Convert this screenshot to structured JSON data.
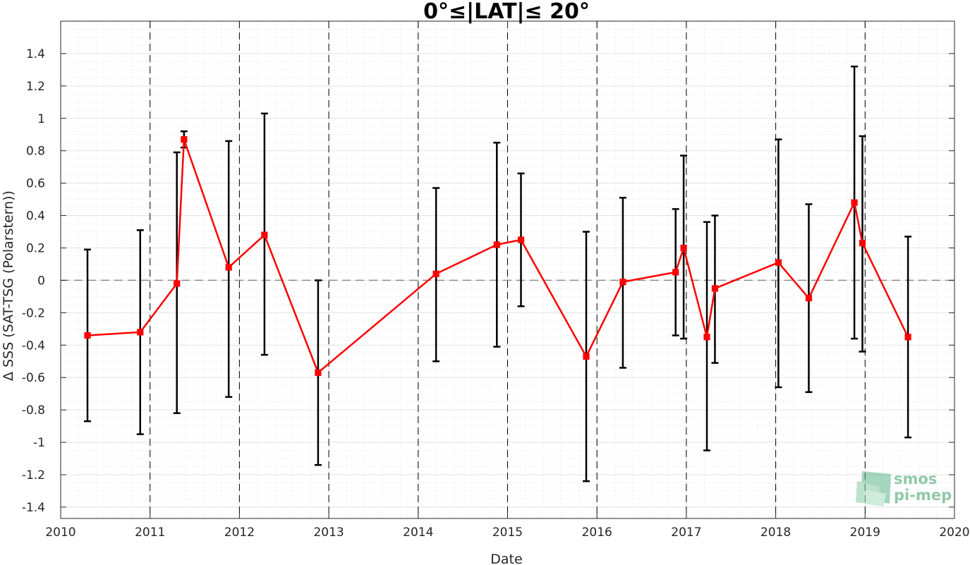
{
  "chart_data": {
    "type": "line",
    "title": "0°≤|LAT|≤ 20°",
    "xlabel": "Date",
    "ylabel": "Δ SSS (SAT-TSG (Polarstern))",
    "xlim": [
      2010,
      2020
    ],
    "ylim": [
      -1.47,
      1.6
    ],
    "x_ticks": [
      "2010",
      "2011",
      "2012",
      "2013",
      "2014",
      "2015",
      "2016",
      "2017",
      "2018",
      "2019",
      "2020"
    ],
    "y_ticks": [
      1.4,
      1.2,
      1,
      0.8,
      0.6,
      0.4,
      0.2,
      0,
      -0.2,
      -0.4,
      -0.6,
      -0.8,
      -1,
      -1.2,
      -1.4
    ],
    "y_tick_labels": [
      "1.4",
      "1.2",
      "1",
      "0.8",
      "0.6",
      "0.4",
      "0.2",
      "0",
      "-0.2",
      "-0.4",
      "-0.6",
      "-0.8",
      "-1",
      "-1.2",
      "-1.4"
    ],
    "grid": true,
    "minor_grid": true,
    "zero_line": 0,
    "vertical_dashed_lines": [
      2011.0,
      2012.0,
      2013.0,
      2014.0,
      2015.0,
      2016.0,
      2017.0,
      2018.0,
      2019.0
    ],
    "series": [
      {
        "color": "#ff0000",
        "marker": "square",
        "errorbar_color": "#000000",
        "points": [
          {
            "x": 2010.3,
            "y": -0.34,
            "lo": -0.87,
            "hi": 0.19
          },
          {
            "x": 2010.89,
            "y": -0.32,
            "lo": -0.95,
            "hi": 0.31
          },
          {
            "x": 2011.3,
            "y": -0.02,
            "lo": -0.82,
            "hi": 0.79
          },
          {
            "x": 2011.38,
            "y": 0.87,
            "lo": 0.82,
            "hi": 0.92
          },
          {
            "x": 2011.88,
            "y": 0.08,
            "lo": -0.72,
            "hi": 0.86
          },
          {
            "x": 2012.28,
            "y": 0.28,
            "lo": -0.46,
            "hi": 1.03
          },
          {
            "x": 2012.88,
            "y": -0.57,
            "lo": -1.14,
            "hi": 0.0
          },
          {
            "x": 2014.2,
            "y": 0.04,
            "lo": -0.5,
            "hi": 0.57
          },
          {
            "x": 2014.88,
            "y": 0.22,
            "lo": -0.41,
            "hi": 0.85
          },
          {
            "x": 2015.15,
            "y": 0.25,
            "lo": -0.16,
            "hi": 0.66
          },
          {
            "x": 2015.88,
            "y": -0.47,
            "lo": -1.24,
            "hi": 0.3
          },
          {
            "x": 2016.29,
            "y": -0.01,
            "lo": -0.54,
            "hi": 0.51
          },
          {
            "x": 2016.88,
            "y": 0.05,
            "lo": -0.34,
            "hi": 0.44
          },
          {
            "x": 2016.97,
            "y": 0.2,
            "lo": -0.36,
            "hi": 0.77
          },
          {
            "x": 2017.23,
            "y": -0.35,
            "lo": -1.05,
            "hi": 0.36
          },
          {
            "x": 2017.32,
            "y": -0.05,
            "lo": -0.51,
            "hi": 0.4
          },
          {
            "x": 2018.03,
            "y": 0.11,
            "lo": -0.66,
            "hi": 0.87
          },
          {
            "x": 2018.37,
            "y": -0.11,
            "lo": -0.69,
            "hi": 0.47
          },
          {
            "x": 2018.88,
            "y": 0.48,
            "lo": -0.36,
            "hi": 1.32
          },
          {
            "x": 2018.97,
            "y": 0.23,
            "lo": -0.44,
            "hi": 0.89
          },
          {
            "x": 2019.48,
            "y": -0.35,
            "lo": -0.97,
            "hi": 0.27
          }
        ]
      }
    ]
  },
  "logo": {
    "line1": "smos",
    "line2": "pi-mep",
    "color": "#8fc9a8"
  }
}
